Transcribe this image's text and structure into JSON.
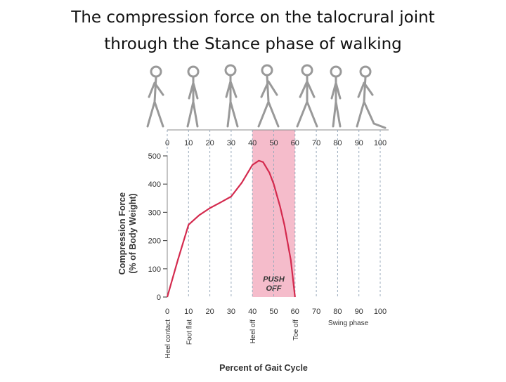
{
  "chart_data": {
    "type": "line",
    "title": [
      "The compression force on the talocrural joint",
      "through the Stance phase of walking"
    ],
    "ylabel": [
      "Compression Force",
      "(% of Body Weight)"
    ],
    "xlabel": "Percent of Gait Cycle",
    "x": [
      0,
      5,
      10,
      15,
      20,
      25,
      30,
      35,
      40,
      43,
      45,
      48,
      50,
      53,
      55,
      58,
      60
    ],
    "series": [
      {
        "color": "#d42a4e",
        "values": [
          0,
          132,
          256,
          290,
          315,
          335,
          356,
          405,
          468,
          483,
          478,
          440,
          400,
          320,
          256,
          132,
          0
        ]
      }
    ],
    "xlim": [
      0,
      100
    ],
    "xticks": [
      0,
      10,
      20,
      30,
      40,
      50,
      60,
      70,
      80,
      90,
      100
    ],
    "ylim": [
      0,
      500
    ],
    "yticks": [
      0,
      100,
      200,
      300,
      400,
      500
    ],
    "shaded_range": {
      "from": 40,
      "to": 60,
      "color": "#f5bccb",
      "label": [
        "PUSH",
        "OFF"
      ]
    },
    "events": [
      {
        "x": 0,
        "label": "Heel contact"
      },
      {
        "x": 10,
        "label": "Foot flat"
      },
      {
        "x": 40,
        "label": "Heel off"
      },
      {
        "x": 60,
        "label": "Toe off"
      }
    ],
    "phase_label": {
      "x": 85,
      "label": "Swing phase"
    },
    "grid": true
  }
}
